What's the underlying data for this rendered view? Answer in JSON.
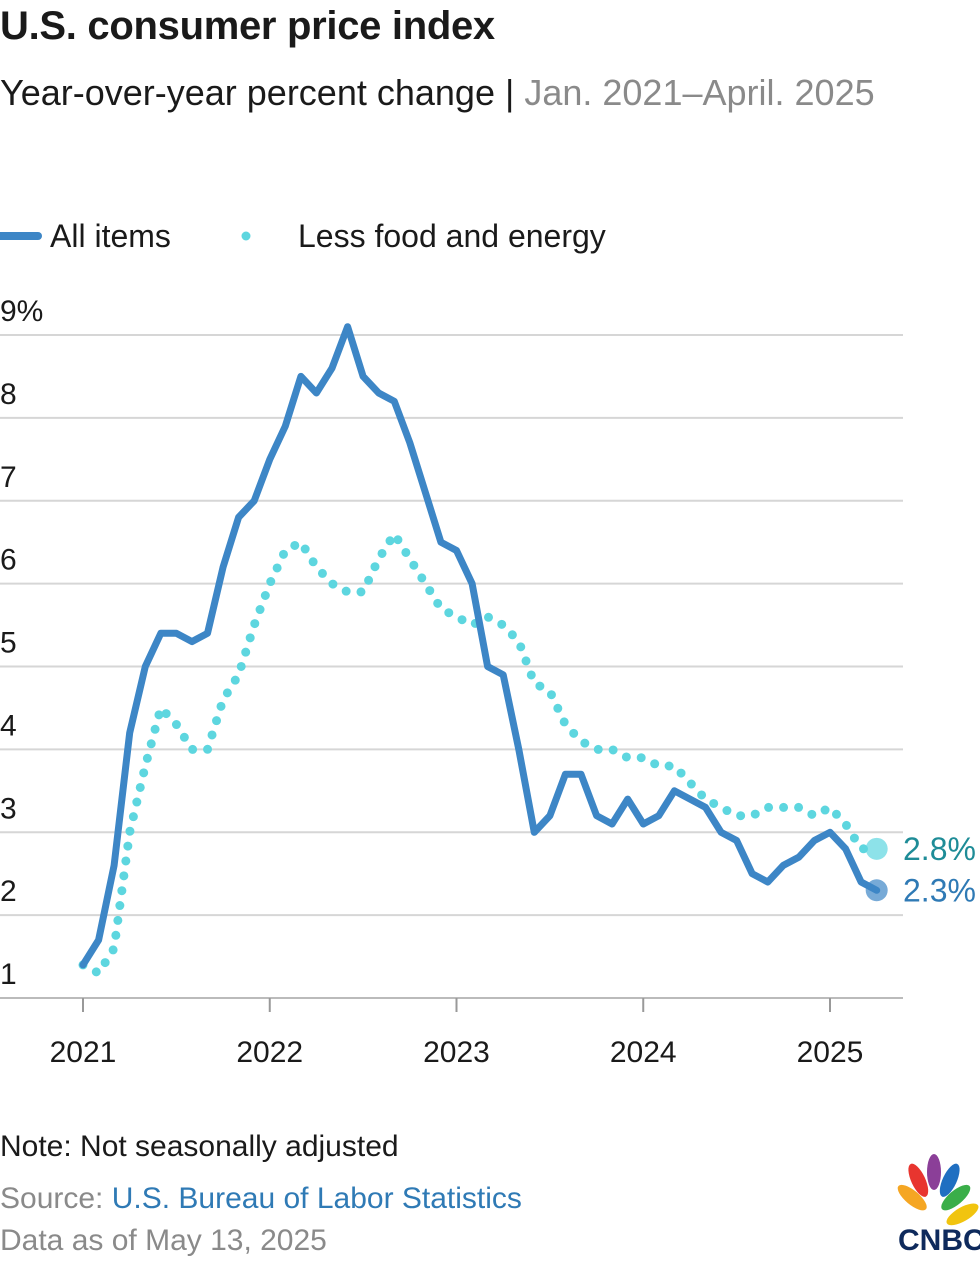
{
  "chart_data": {
    "type": "line",
    "title": "U.S. consumer price index",
    "subtitle": "Year-over-year percent change |",
    "date_range": "Jan. 2021–April. 2025",
    "categories": [
      "2021",
      null,
      null,
      null,
      null,
      null,
      null,
      null,
      null,
      null,
      null,
      null,
      "2022",
      null,
      null,
      null,
      null,
      null,
      null,
      null,
      null,
      null,
      null,
      null,
      "2023",
      null,
      null,
      null,
      null,
      null,
      null,
      null,
      null,
      null,
      null,
      null,
      "2024",
      null,
      null,
      null,
      null,
      null,
      null,
      null,
      null,
      null,
      null,
      null,
      "2025",
      null,
      null,
      null
    ],
    "series": [
      {
        "name": "All items",
        "color": "#3d86c6",
        "label_color": "#2f7ab5",
        "style": "solid",
        "values": [
          1.4,
          1.7,
          2.6,
          4.2,
          5.0,
          5.4,
          5.4,
          5.3,
          5.4,
          6.2,
          6.8,
          7.0,
          7.5,
          7.9,
          8.5,
          8.3,
          8.6,
          9.1,
          8.5,
          8.3,
          8.2,
          7.7,
          7.1,
          6.5,
          6.4,
          6.0,
          5.0,
          4.9,
          4.0,
          3.0,
          3.2,
          3.7,
          3.7,
          3.2,
          3.1,
          3.4,
          3.1,
          3.2,
          3.5,
          3.4,
          3.3,
          3.0,
          2.9,
          2.5,
          2.4,
          2.6,
          2.7,
          2.9,
          3.0,
          2.8,
          2.4,
          2.3
        ],
        "value_labels": [
          null,
          null,
          null,
          null,
          null,
          null,
          null,
          null,
          null,
          null,
          null,
          null,
          null,
          null,
          null,
          null,
          null,
          null,
          null,
          null,
          null,
          null,
          null,
          null,
          null,
          null,
          null,
          null,
          null,
          null,
          null,
          null,
          null,
          null,
          null,
          null,
          null,
          null,
          null,
          null,
          null,
          null,
          null,
          null,
          null,
          null,
          null,
          null,
          null,
          null,
          null,
          "2.3%"
        ]
      },
      {
        "name": "Less food and energy",
        "color": "#5dd6df",
        "label_color": "#1e8c97",
        "style": "dotted",
        "values": [
          1.4,
          1.3,
          1.6,
          3.0,
          3.8,
          4.5,
          4.3,
          4.0,
          4.0,
          4.6,
          4.9,
          5.5,
          6.0,
          6.4,
          6.5,
          6.2,
          6.0,
          5.9,
          5.9,
          6.3,
          6.6,
          6.3,
          6.0,
          5.7,
          5.6,
          5.5,
          5.6,
          5.5,
          5.3,
          4.8,
          4.7,
          4.3,
          4.1,
          4.0,
          4.0,
          3.9,
          3.9,
          3.8,
          3.8,
          3.6,
          3.4,
          3.3,
          3.2,
          3.2,
          3.3,
          3.3,
          3.3,
          3.2,
          3.3,
          3.1,
          2.8,
          2.8
        ],
        "value_labels": [
          null,
          null,
          null,
          null,
          null,
          null,
          null,
          null,
          null,
          null,
          null,
          null,
          null,
          null,
          null,
          null,
          null,
          null,
          null,
          null,
          null,
          null,
          null,
          null,
          null,
          null,
          null,
          null,
          null,
          null,
          null,
          null,
          null,
          null,
          null,
          null,
          null,
          null,
          null,
          null,
          null,
          null,
          null,
          null,
          null,
          null,
          null,
          null,
          null,
          null,
          null,
          "2.8%"
        ]
      }
    ],
    "ylim": [
      1,
      9
    ],
    "yticks": [
      1,
      2,
      3,
      4,
      5,
      6,
      7,
      8,
      {
        "value": 9,
        "label": "9%"
      }
    ],
    "grid": true,
    "note": "Note: Not seasonally adjusted",
    "source_label": "Source:",
    "source": "U.S. Bureau of Labor Statistics",
    "data_date": "Data as of May 13, 2025",
    "logo": "CNBC"
  }
}
